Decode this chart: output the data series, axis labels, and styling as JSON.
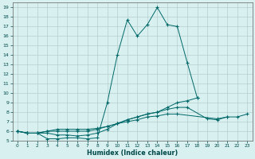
{
  "background_color": "#d8f0f0",
  "grid_color": "#b8cece",
  "line_color": "#006868",
  "xlabel": "Humidex (Indice chaleur)",
  "xlim": [
    -0.5,
    23.5
  ],
  "ylim": [
    5,
    19.5
  ],
  "yticks": [
    5,
    6,
    7,
    8,
    9,
    10,
    11,
    12,
    13,
    14,
    15,
    16,
    17,
    18,
    19
  ],
  "xticks": [
    0,
    1,
    2,
    3,
    4,
    5,
    6,
    7,
    8,
    9,
    10,
    11,
    12,
    13,
    14,
    15,
    16,
    17,
    18,
    19,
    20,
    21,
    22,
    23
  ],
  "lines": [
    {
      "x": [
        0,
        1,
        2,
        3,
        4,
        5,
        6,
        7,
        8,
        9,
        10,
        11,
        12,
        13,
        14,
        15,
        16,
        17,
        18
      ],
      "y": [
        6.0,
        5.8,
        5.8,
        5.2,
        5.2,
        5.3,
        5.3,
        5.2,
        5.3,
        9.0,
        14.0,
        17.7,
        16.0,
        17.2,
        19.0,
        17.2,
        17.0,
        13.2,
        9.5
      ]
    },
    {
      "x": [
        0,
        1,
        2,
        3,
        4,
        5,
        6,
        7,
        8,
        9,
        10,
        11,
        12,
        13,
        14,
        15,
        16,
        17,
        18
      ],
      "y": [
        6.0,
        5.8,
        5.8,
        5.8,
        5.6,
        5.6,
        5.5,
        5.6,
        5.8,
        6.2,
        6.8,
        7.2,
        7.5,
        7.8,
        8.0,
        8.5,
        9.0,
        9.2,
        9.5
      ]
    },
    {
      "x": [
        0,
        1,
        2,
        3,
        4,
        5,
        6,
        7,
        8,
        9,
        10,
        11,
        12,
        13,
        14,
        15,
        16,
        17,
        19,
        20,
        21
      ],
      "y": [
        6.0,
        5.8,
        5.8,
        6.0,
        6.0,
        6.0,
        6.0,
        6.0,
        6.2,
        6.5,
        6.8,
        7.2,
        7.5,
        7.8,
        8.0,
        8.3,
        8.5,
        8.5,
        7.3,
        7.2,
        7.5
      ]
    },
    {
      "x": [
        0,
        1,
        2,
        3,
        4,
        5,
        6,
        7,
        8,
        9,
        10,
        11,
        12,
        13,
        14,
        15,
        16,
        20,
        21,
        22,
        23
      ],
      "y": [
        6.0,
        5.8,
        5.8,
        6.0,
        6.2,
        6.2,
        6.2,
        6.2,
        6.3,
        6.5,
        6.8,
        7.0,
        7.2,
        7.5,
        7.6,
        7.8,
        7.8,
        7.3,
        7.5,
        7.5,
        7.8
      ]
    }
  ]
}
